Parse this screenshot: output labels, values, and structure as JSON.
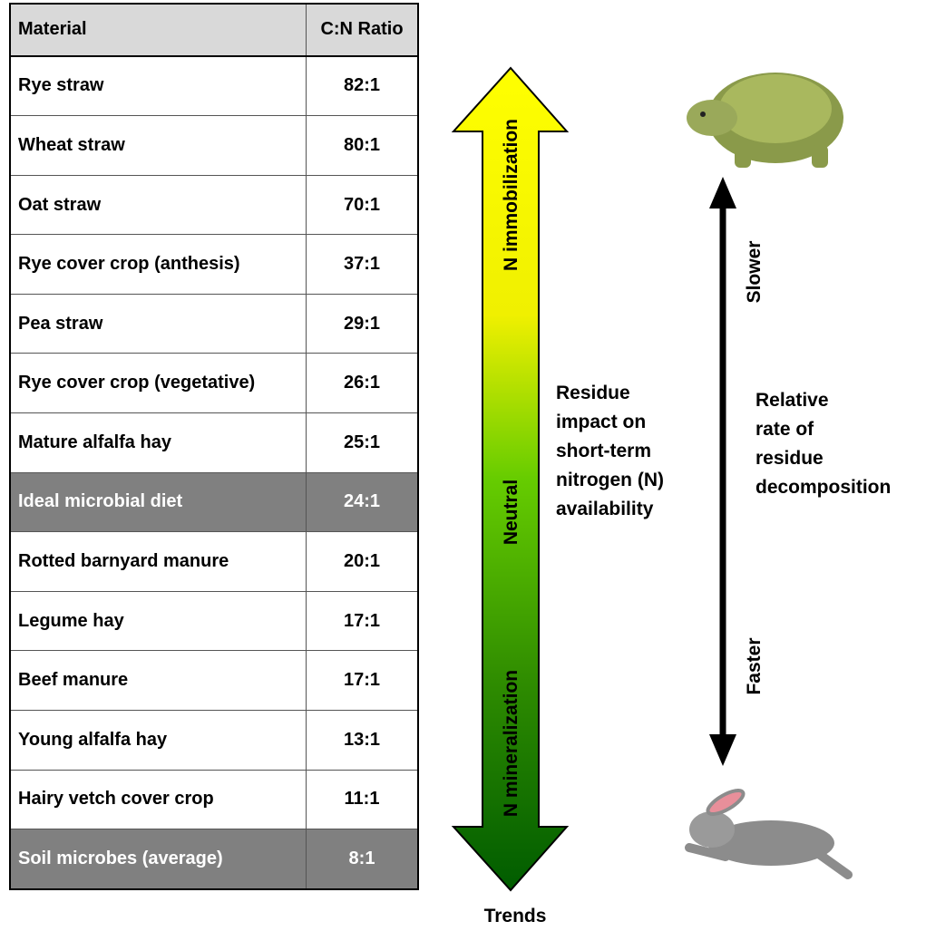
{
  "table": {
    "header": [
      "Material",
      "C:N Ratio"
    ],
    "rows": [
      [
        "Rye straw",
        "82:1"
      ],
      [
        "Wheat straw",
        "80:1"
      ],
      [
        "Oat straw",
        "70:1"
      ],
      [
        "Rye cover crop (anthesis)",
        "37:1"
      ],
      [
        "Pea straw",
        "29:1"
      ],
      [
        "Rye cover crop (vegetative)",
        "26:1"
      ],
      [
        "Mature alfalfa hay",
        "25:1"
      ],
      [
        "Ideal microbial diet",
        "24:1"
      ],
      [
        "Rotted barnyard manure",
        "20:1"
      ],
      [
        "Legume hay",
        "17:1"
      ],
      [
        "Beef manure",
        "17:1"
      ],
      [
        "Young alfalfa hay",
        "13:1"
      ],
      [
        "Hairy vetch cover crop",
        "11:1"
      ],
      [
        "Soil microbes (average)",
        "8:1"
      ]
    ]
  },
  "trend_arrow": {
    "top": "N immobilization",
    "middle": "Neutral",
    "bottom": "N mineralization",
    "caption": "Trends"
  },
  "nitrogen_label": [
    "Residue",
    "impact on",
    "short-term",
    "nitrogen (N)",
    "availability"
  ],
  "decomposition": {
    "label": [
      "Relative",
      "rate of",
      "residue",
      "decomposition"
    ],
    "slower": "Slower",
    "faster": "Faster"
  }
}
